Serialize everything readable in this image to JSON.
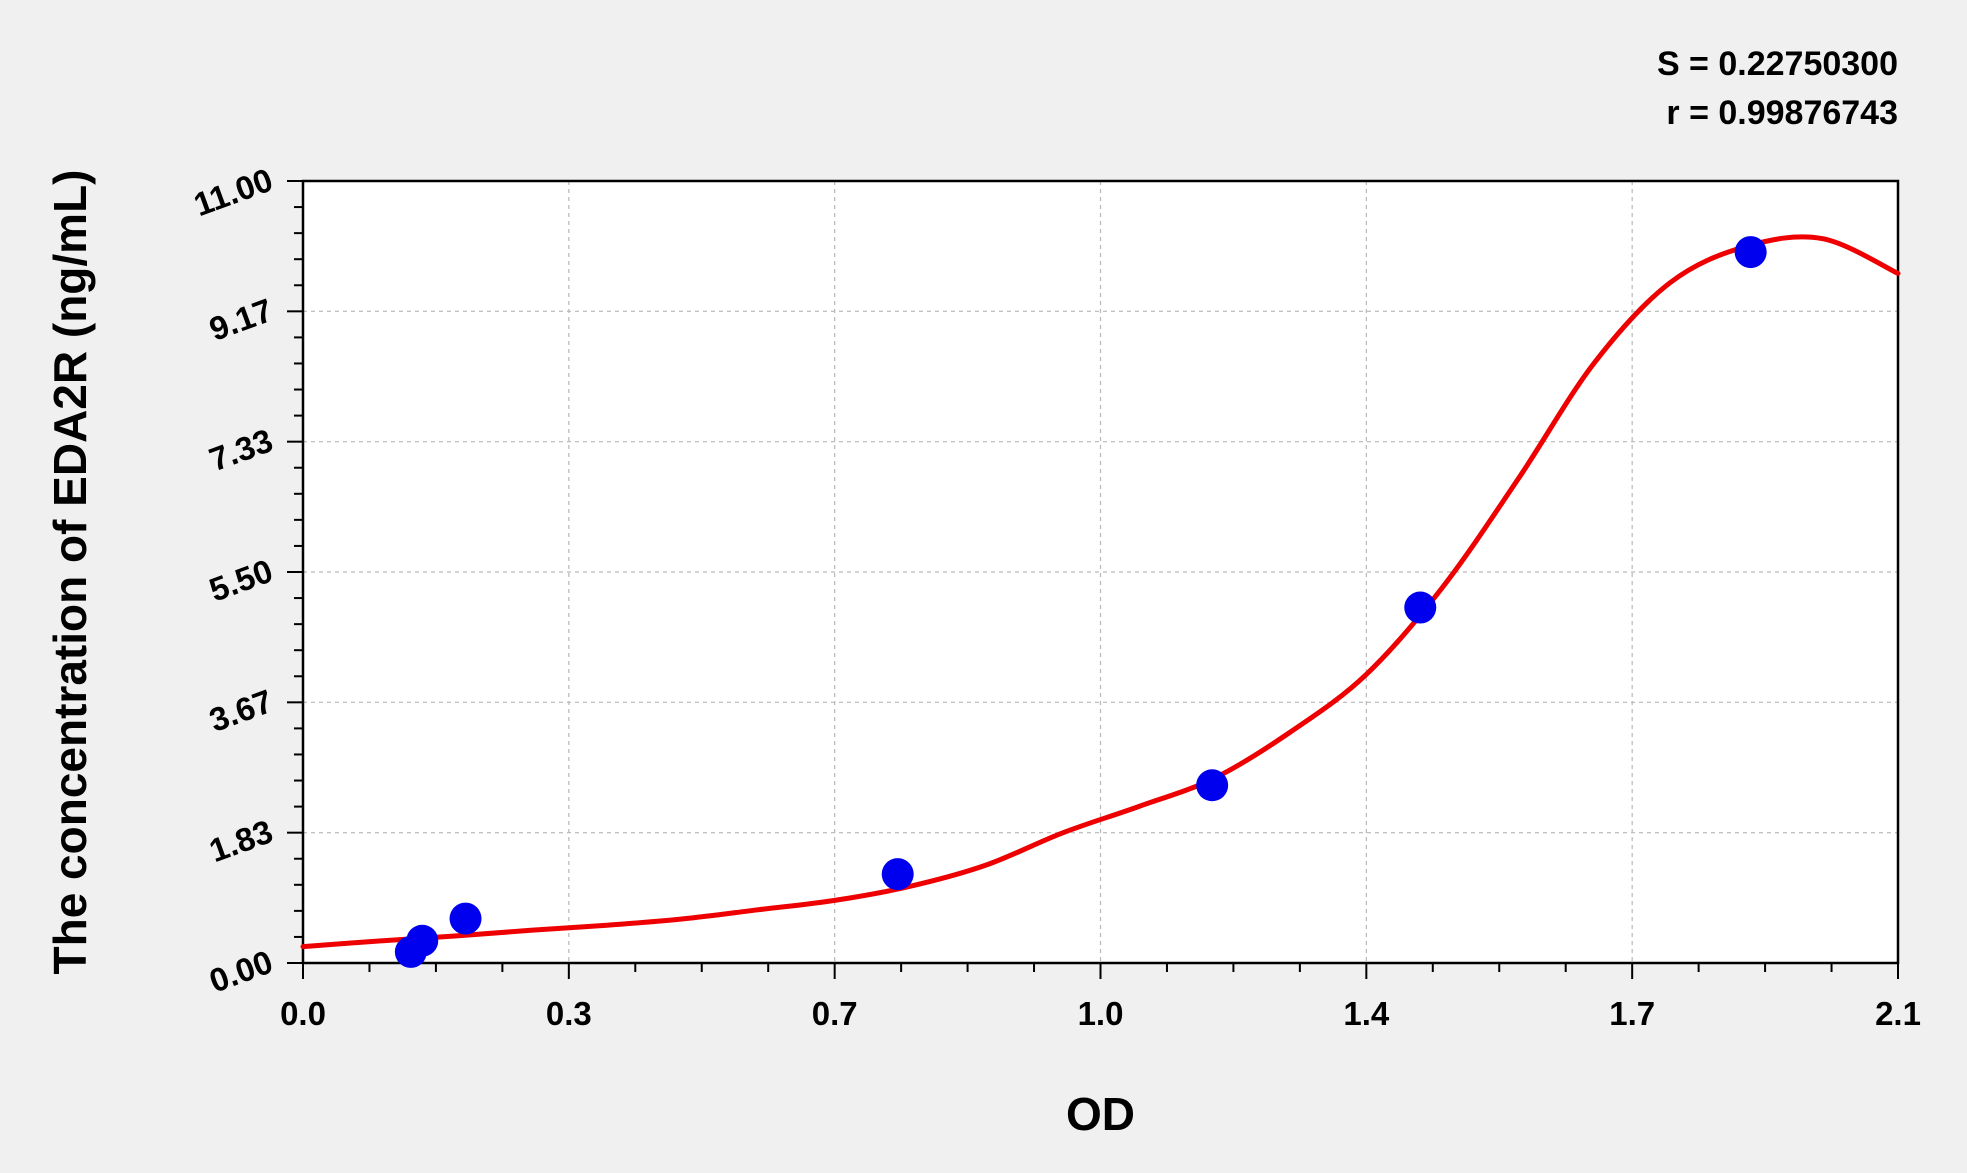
{
  "chart_data": {
    "type": "scatter",
    "title": "",
    "xlabel": "OD",
    "ylabel": "The concentration of EDA2R (ng/mL)",
    "xlim": [
      0.0,
      2.1
    ],
    "ylim": [
      0.0,
      11.0
    ],
    "x_ticks": [
      "0.0",
      "0.3",
      "0.7",
      "1.0",
      "1.4",
      "1.7",
      "2.1"
    ],
    "y_ticks": [
      "0.00",
      "1.83",
      "3.67",
      "5.50",
      "7.33",
      "9.17",
      "11.00"
    ],
    "grid": true,
    "stats": [
      "S = 0.22750300",
      "r = 0.99876743"
    ],
    "series": [
      {
        "kind": "points",
        "color": "#0000ee",
        "x": [
          0.142,
          0.157,
          0.214,
          0.783,
          1.197,
          1.471,
          1.906
        ],
        "y": [
          0.156,
          0.313,
          0.625,
          1.25,
          2.5,
          5.0,
          10.0
        ]
      },
      {
        "kind": "fit-curve",
        "color": "#ee0000",
        "x": [
          0.0,
          0.1,
          0.2,
          0.3,
          0.4,
          0.5,
          0.6,
          0.7,
          0.8,
          0.9,
          1.0,
          1.1,
          1.2,
          1.3,
          1.4,
          1.5,
          1.6,
          1.7,
          1.8,
          1.9,
          2.0,
          2.1
        ],
        "y": [
          0.23,
          0.31,
          0.38,
          0.46,
          0.53,
          0.62,
          0.75,
          0.88,
          1.08,
          1.38,
          1.83,
          2.2,
          2.6,
          3.25,
          4.06,
          5.28,
          6.81,
          8.44,
          9.57,
          10.08,
          10.19,
          9.7
        ]
      }
    ]
  }
}
